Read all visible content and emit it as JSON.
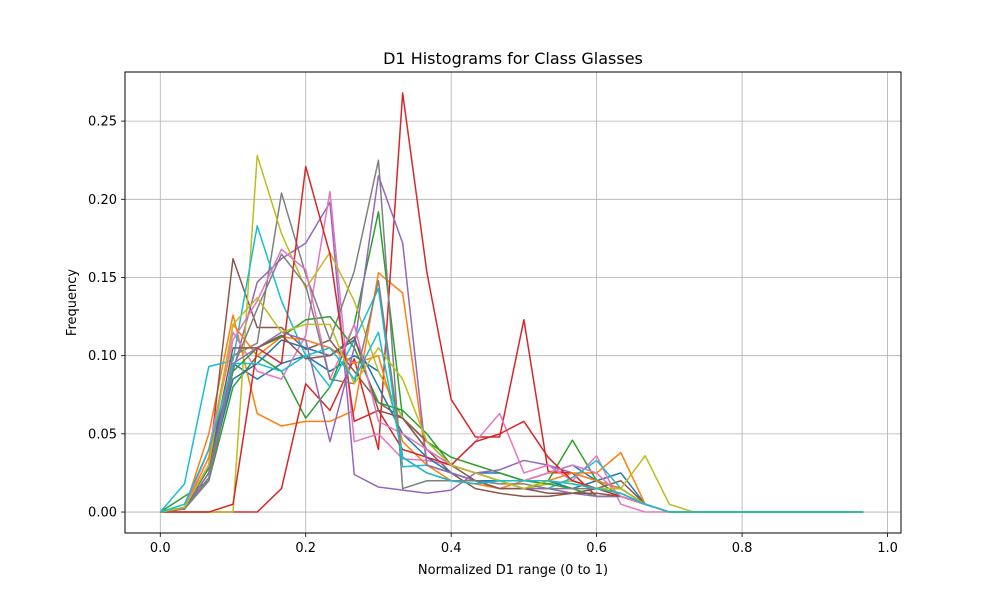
{
  "chart_data": {
    "type": "line",
    "title": "D1 Histograms for Class Glasses",
    "xlabel": "Normalized D1 range (0 to 1)",
    "ylabel": "Frequency",
    "xlim": [
      -0.0485,
      1.0185
    ],
    "ylim": [
      -0.0134,
      0.2814
    ],
    "xticks": [
      0.0,
      0.2,
      0.4,
      0.6,
      0.8,
      1.0
    ],
    "xtick_labels": [
      "0.0",
      "0.2",
      "0.4",
      "0.6",
      "0.8",
      "1.0"
    ],
    "yticks": [
      0.0,
      0.05,
      0.1,
      0.15,
      0.2,
      0.25
    ],
    "ytick_labels": [
      "0.00",
      "0.05",
      "0.10",
      "0.15",
      "0.20",
      "0.25"
    ],
    "grid": true,
    "x": [
      0,
      0.0333,
      0.0667,
      0.1,
      0.1333,
      0.1667,
      0.2,
      0.2333,
      0.2667,
      0.3,
      0.3333,
      0.3667,
      0.4,
      0.4333,
      0.4667,
      0.5,
      0.5333,
      0.5667,
      0.6,
      0.6333,
      0.6667,
      0.7,
      0.7333,
      0.7667,
      0.8,
      0.8333,
      0.8667,
      0.9,
      0.9333,
      0.9667
    ],
    "series": [
      {
        "color": "#1f77b4",
        "values": [
          0,
          0.003,
          0.03,
          0.095,
          0.085,
          0.095,
          0.1,
          0.09,
          0.1,
          0.09,
          0.06,
          0.04,
          0.03,
          0.025,
          0.025,
          0.02,
          0.025,
          0.03,
          0.02,
          0.025,
          0.005,
          0,
          0,
          0,
          0,
          0,
          0,
          0,
          0,
          0
        ]
      },
      {
        "color": "#ff7f0e",
        "values": [
          0,
          0.002,
          0.05,
          0.126,
          0.063,
          0.055,
          0.058,
          0.058,
          0.065,
          0.153,
          0.14,
          0.03,
          0.025,
          0.02,
          0.015,
          0.02,
          0.025,
          0.025,
          0.025,
          0.038,
          0.005,
          0,
          0,
          0,
          0,
          0,
          0,
          0,
          0,
          0
        ]
      },
      {
        "color": "#2ca02c",
        "values": [
          0,
          0.01,
          0.02,
          0.08,
          0.1,
          0.09,
          0.06,
          0.08,
          0.12,
          0.192,
          0.06,
          0.045,
          0.035,
          0.03,
          0.025,
          0.02,
          0.02,
          0.046,
          0.02,
          0.01,
          0.005,
          0,
          0,
          0,
          0,
          0,
          0,
          0,
          0,
          0
        ]
      },
      {
        "color": "#d62728",
        "values": [
          0,
          0,
          0,
          0,
          0,
          0.015,
          0.082,
          0.065,
          0.098,
          0.04,
          0.268,
          0.153,
          0.072,
          0.048,
          0.048,
          0.123,
          0.026,
          0.025,
          0.01,
          0.01,
          0.005,
          0,
          0,
          0,
          0,
          0,
          0,
          0,
          0,
          0
        ]
      },
      {
        "color": "#9467bd",
        "values": [
          0,
          0.002,
          0.02,
          0.09,
          0.147,
          0.162,
          0.172,
          0.198,
          0.024,
          0.016,
          0.014,
          0.012,
          0.014,
          0.025,
          0.027,
          0.033,
          0.03,
          0.025,
          0.02,
          0.015,
          0.005,
          0,
          0,
          0,
          0,
          0,
          0,
          0,
          0,
          0
        ]
      },
      {
        "color": "#8c564b",
        "values": [
          0,
          0.003,
          0.03,
          0.162,
          0.118,
          0.118,
          0.104,
          0.11,
          0.09,
          0.07,
          0.06,
          0.04,
          0.025,
          0.015,
          0.012,
          0.01,
          0.01,
          0.012,
          0.015,
          0.02,
          0.005,
          0,
          0,
          0,
          0,
          0,
          0,
          0,
          0,
          0
        ]
      },
      {
        "color": "#e377c2",
        "values": [
          0,
          0.002,
          0.04,
          0.115,
          0.09,
          0.085,
          0.113,
          0.205,
          0.045,
          0.05,
          0.034,
          0.033,
          0.03,
          0.045,
          0.063,
          0.025,
          0.03,
          0.02,
          0.036,
          0.005,
          0,
          0,
          0,
          0,
          0,
          0,
          0,
          0,
          0,
          0
        ]
      },
      {
        "color": "#7f7f7f",
        "values": [
          0,
          0.002,
          0.02,
          0.1,
          0.108,
          0.204,
          0.152,
          0.11,
          0.154,
          0.225,
          0.015,
          0.02,
          0.02,
          0.018,
          0.02,
          0.015,
          0.018,
          0.02,
          0.015,
          0.015,
          0.005,
          0,
          0,
          0,
          0,
          0,
          0,
          0,
          0,
          0
        ]
      },
      {
        "color": "#bcbd22",
        "values": [
          0,
          0,
          0,
          0,
          0.228,
          0.178,
          0.143,
          0.166,
          0.135,
          0.09,
          0.06,
          0.045,
          0.03,
          0.025,
          0.02,
          0.015,
          0.018,
          0.02,
          0.015,
          0.015,
          0.036,
          0.005,
          0,
          0,
          0,
          0,
          0,
          0,
          0,
          0
        ]
      },
      {
        "color": "#17becf",
        "values": [
          0,
          0.018,
          0.093,
          0.097,
          0.183,
          0.135,
          0.1,
          0.08,
          0.11,
          0.143,
          0.029,
          0.03,
          0.025,
          0.02,
          0.02,
          0.015,
          0.015,
          0.022,
          0.033,
          0.015,
          0.005,
          0,
          0,
          0,
          0,
          0,
          0,
          0,
          0,
          0
        ]
      },
      {
        "color": "#1f77b4",
        "values": [
          0,
          0.002,
          0.025,
          0.085,
          0.095,
          0.11,
          0.105,
          0.1,
          0.11,
          0.08,
          0.05,
          0.035,
          0.025,
          0.02,
          0.02,
          0.02,
          0.02,
          0.015,
          0.02,
          0.015,
          0.005,
          0,
          0,
          0,
          0,
          0,
          0,
          0,
          0,
          0
        ]
      },
      {
        "color": "#ff7f0e",
        "values": [
          0,
          0.002,
          0.035,
          0.12,
          0.1,
          0.112,
          0.11,
          0.105,
          0.095,
          0.1,
          0.045,
          0.03,
          0.02,
          0.018,
          0.015,
          0.015,
          0.02,
          0.025,
          0.02,
          0.015,
          0.005,
          0,
          0,
          0,
          0,
          0,
          0,
          0,
          0,
          0
        ]
      },
      {
        "color": "#2ca02c",
        "values": [
          0,
          0.003,
          0.028,
          0.09,
          0.105,
          0.112,
          0.123,
          0.125,
          0.105,
          0.07,
          0.065,
          0.05,
          0.03,
          0.025,
          0.02,
          0.02,
          0.018,
          0.015,
          0.01,
          0.01,
          0.005,
          0,
          0,
          0,
          0,
          0,
          0,
          0,
          0,
          0
        ]
      },
      {
        "color": "#d62728",
        "values": [
          0,
          0,
          0,
          0.005,
          0.105,
          0.095,
          0.221,
          0.165,
          0.058,
          0.065,
          0.04,
          0.035,
          0.03,
          0.045,
          0.05,
          0.058,
          0.035,
          0.02,
          0.015,
          0.01,
          0.005,
          0,
          0,
          0,
          0,
          0,
          0,
          0,
          0,
          0
        ]
      },
      {
        "color": "#9467bd",
        "values": [
          0,
          0.002,
          0.025,
          0.095,
          0.105,
          0.115,
          0.11,
          0.045,
          0.105,
          0.215,
          0.172,
          0.03,
          0.025,
          0.02,
          0.015,
          0.015,
          0.015,
          0.012,
          0.01,
          0.01,
          0.005,
          0,
          0,
          0,
          0,
          0,
          0,
          0,
          0,
          0
        ]
      },
      {
        "color": "#8c564b",
        "values": [
          0,
          0.002,
          0.03,
          0.105,
          0.105,
          0.113,
          0.098,
          0.1,
          0.112,
          0.065,
          0.06,
          0.045,
          0.03,
          0.02,
          0.015,
          0.015,
          0.012,
          0.012,
          0.012,
          0.01,
          0.005,
          0,
          0,
          0,
          0,
          0,
          0,
          0,
          0,
          0
        ]
      },
      {
        "color": "#e377c2",
        "values": [
          0,
          0.003,
          0.04,
          0.11,
          0.135,
          0.168,
          0.155,
          0.085,
          0.12,
          0.058,
          0.05,
          0.04,
          0.03,
          0.025,
          0.02,
          0.02,
          0.025,
          0.03,
          0.025,
          0.01,
          0.005,
          0,
          0,
          0,
          0,
          0,
          0,
          0,
          0,
          0
        ]
      },
      {
        "color": "#7f7f7f",
        "values": [
          0,
          0.002,
          0.022,
          0.092,
          0.13,
          0.165,
          0.145,
          0.085,
          0.082,
          0.148,
          0.035,
          0.025,
          0.02,
          0.02,
          0.018,
          0.018,
          0.015,
          0.015,
          0.015,
          0.012,
          0.005,
          0,
          0,
          0,
          0,
          0,
          0,
          0,
          0,
          0
        ]
      },
      {
        "color": "#bcbd22",
        "values": [
          0,
          0.003,
          0.03,
          0.12,
          0.137,
          0.115,
          0.12,
          0.12,
          0.082,
          0.105,
          0.085,
          0.045,
          0.03,
          0.025,
          0.02,
          0.015,
          0.02,
          0.018,
          0.015,
          0.015,
          0.005,
          0,
          0,
          0,
          0,
          0,
          0,
          0,
          0,
          0
        ]
      },
      {
        "color": "#17becf",
        "values": [
          0,
          0.005,
          0.04,
          0.095,
          0.095,
          0.09,
          0.1,
          0.105,
          0.085,
          0.115,
          0.035,
          0.025,
          0.02,
          0.018,
          0.02,
          0.02,
          0.02,
          0.018,
          0.015,
          0.012,
          0.005,
          0,
          0,
          0,
          0,
          0,
          0,
          0,
          0,
          0
        ]
      }
    ]
  }
}
